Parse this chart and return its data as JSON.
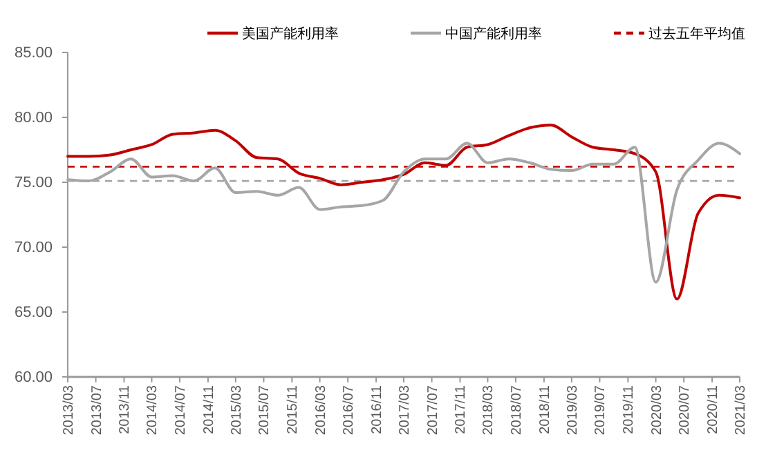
{
  "chart_data": {
    "type": "line",
    "x": [
      "2013-03",
      "2013-06",
      "2013-09",
      "2013-12",
      "2014-03",
      "2014-06",
      "2014-09",
      "2014-12",
      "2015-03",
      "2015-06",
      "2015-09",
      "2015-12",
      "2016-03",
      "2016-06",
      "2016-09",
      "2016-12",
      "2017-03",
      "2017-06",
      "2017-09",
      "2017-12",
      "2018-03",
      "2018-06",
      "2018-09",
      "2018-12",
      "2019-03",
      "2019-06",
      "2019-09",
      "2019-12",
      "2020-03",
      "2020-06",
      "2020-09",
      "2020-12",
      "2021-03"
    ],
    "series": [
      {
        "name": "美国产能利用率",
        "color": "#c00000",
        "values": [
          77.0,
          77.0,
          77.1,
          77.5,
          77.9,
          78.7,
          78.8,
          79.0,
          78.2,
          76.9,
          76.8,
          75.7,
          75.3,
          74.8,
          75.0,
          75.2,
          75.6,
          76.5,
          76.3,
          77.7,
          77.9,
          78.6,
          79.2,
          79.4,
          78.5,
          77.7,
          77.5,
          77.2,
          75.8,
          66.0,
          72.6,
          74.0,
          73.8
        ]
      },
      {
        "name": "中国产能利用率",
        "color": "#a6a6a6",
        "values": [
          75.2,
          75.1,
          75.8,
          76.8,
          75.4,
          75.5,
          75.1,
          76.1,
          74.2,
          74.3,
          74.0,
          74.6,
          72.9,
          73.1,
          73.2,
          73.6,
          75.8,
          76.8,
          76.8,
          78.0,
          76.5,
          76.8,
          76.5,
          76.0,
          75.9,
          76.4,
          76.4,
          77.7,
          67.3,
          74.4,
          76.7,
          78.0,
          77.2
        ]
      }
    ],
    "ref_lines": [
      {
        "axis": "y",
        "value": 76.2,
        "color": "#c00000",
        "line_style": "dashed",
        "label": "过去五年平均值"
      },
      {
        "axis": "y",
        "value": 75.1,
        "color": "#a6a6a6",
        "line_style": "dashed"
      }
    ],
    "ylim": [
      60,
      85
    ],
    "yticks": [
      {
        "value": 60,
        "label": "60.00"
      },
      {
        "value": 65,
        "label": "65.00"
      },
      {
        "value": 70,
        "label": "70.00"
      },
      {
        "value": 75,
        "label": "75.00"
      },
      {
        "value": 80,
        "label": "80.00"
      },
      {
        "value": 85,
        "label": "85.00"
      }
    ],
    "xlim": [
      "2013-03",
      "2021-03"
    ],
    "xticks": [
      {
        "value": "2013-03",
        "label": "2013/03"
      },
      {
        "value": "2013-07",
        "label": "2013/07"
      },
      {
        "value": "2013-11",
        "label": "2013/11"
      },
      {
        "value": "2014-03",
        "label": "2014/03"
      },
      {
        "value": "2014-07",
        "label": "2014/07"
      },
      {
        "value": "2014-11",
        "label": "2014/11"
      },
      {
        "value": "2015-03",
        "label": "2015/03"
      },
      {
        "value": "2015-07",
        "label": "2015/07"
      },
      {
        "value": "2015-11",
        "label": "2015/11"
      },
      {
        "value": "2016-03",
        "label": "2016/03"
      },
      {
        "value": "2016-07",
        "label": "2016/07"
      },
      {
        "value": "2016-11",
        "label": "2016/11"
      },
      {
        "value": "2017-03",
        "label": "2017/03"
      },
      {
        "value": "2017-07",
        "label": "2017/07"
      },
      {
        "value": "2017-11",
        "label": "2017/11"
      },
      {
        "value": "2018-03",
        "label": "2018/03"
      },
      {
        "value": "2018-07",
        "label": "2018/07"
      },
      {
        "value": "2018-11",
        "label": "2018/11"
      },
      {
        "value": "2019-03",
        "label": "2019/03"
      },
      {
        "value": "2019-07",
        "label": "2019/07"
      },
      {
        "value": "2019-11",
        "label": "2019/11"
      },
      {
        "value": "2020-03",
        "label": "2020/03"
      },
      {
        "value": "2020-07",
        "label": "2020/07"
      },
      {
        "value": "2020-11",
        "label": "2020/11"
      },
      {
        "value": "2021-03",
        "label": "2021/03"
      }
    ],
    "grid": false,
    "legend": "top",
    "marker": "none",
    "line_style": "solid"
  }
}
